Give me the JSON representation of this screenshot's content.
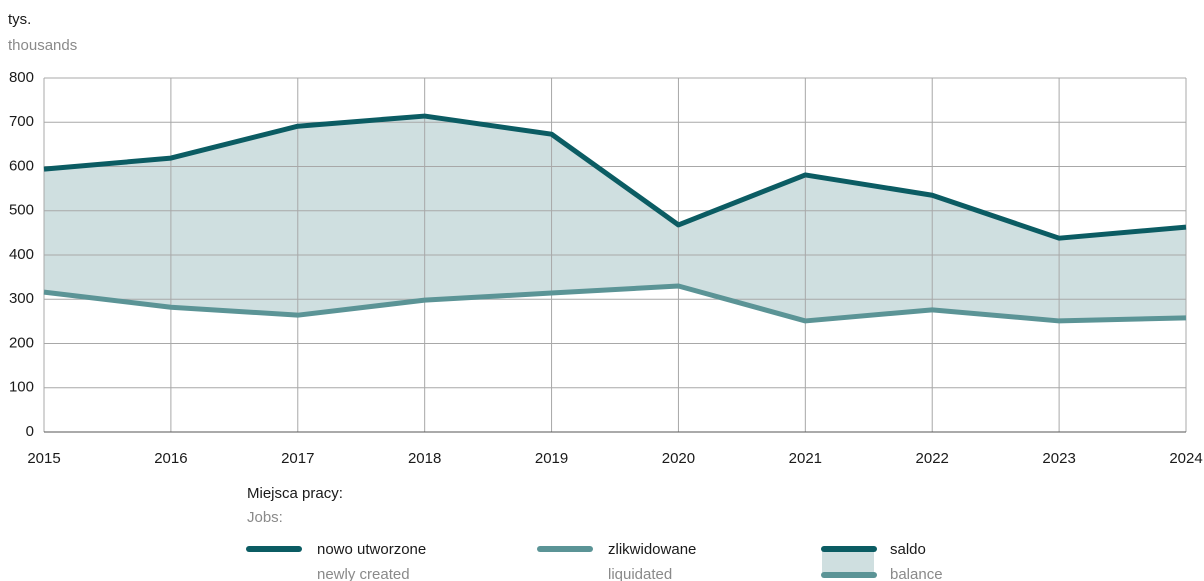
{
  "chart_data": {
    "type": "line",
    "y_label": "tys.",
    "y_label_en": "thousands",
    "x": [
      2015,
      2016,
      2017,
      2018,
      2019,
      2020,
      2021,
      2022,
      2023,
      2024
    ],
    "xlim": [
      2015,
      2024
    ],
    "xticks": [
      2015,
      2016,
      2017,
      2018,
      2019,
      2020,
      2021,
      2022,
      2023,
      2024
    ],
    "ylim": [
      0,
      800
    ],
    "yticks": [
      0,
      100,
      200,
      300,
      400,
      500,
      600,
      700,
      800
    ],
    "grid": true,
    "fill_between": true,
    "fill_color": "#cfdfe0",
    "legend_title": "Miejsca pracy:",
    "legend_title_en": "Jobs:",
    "series": [
      {
        "name": "nowo utworzone",
        "name_en": "newly created",
        "color": "#0b5c63",
        "values": [
          594,
          619,
          691,
          714,
          673,
          468,
          581,
          535,
          438,
          463
        ]
      },
      {
        "name": "zlikwidowane",
        "name_en": "liquidated",
        "color": "#5b9496",
        "values": [
          316,
          282,
          264,
          298,
          314,
          330,
          251,
          276,
          251,
          258
        ]
      }
    ],
    "balance": {
      "name": "saldo",
      "name_en": "balance"
    }
  }
}
